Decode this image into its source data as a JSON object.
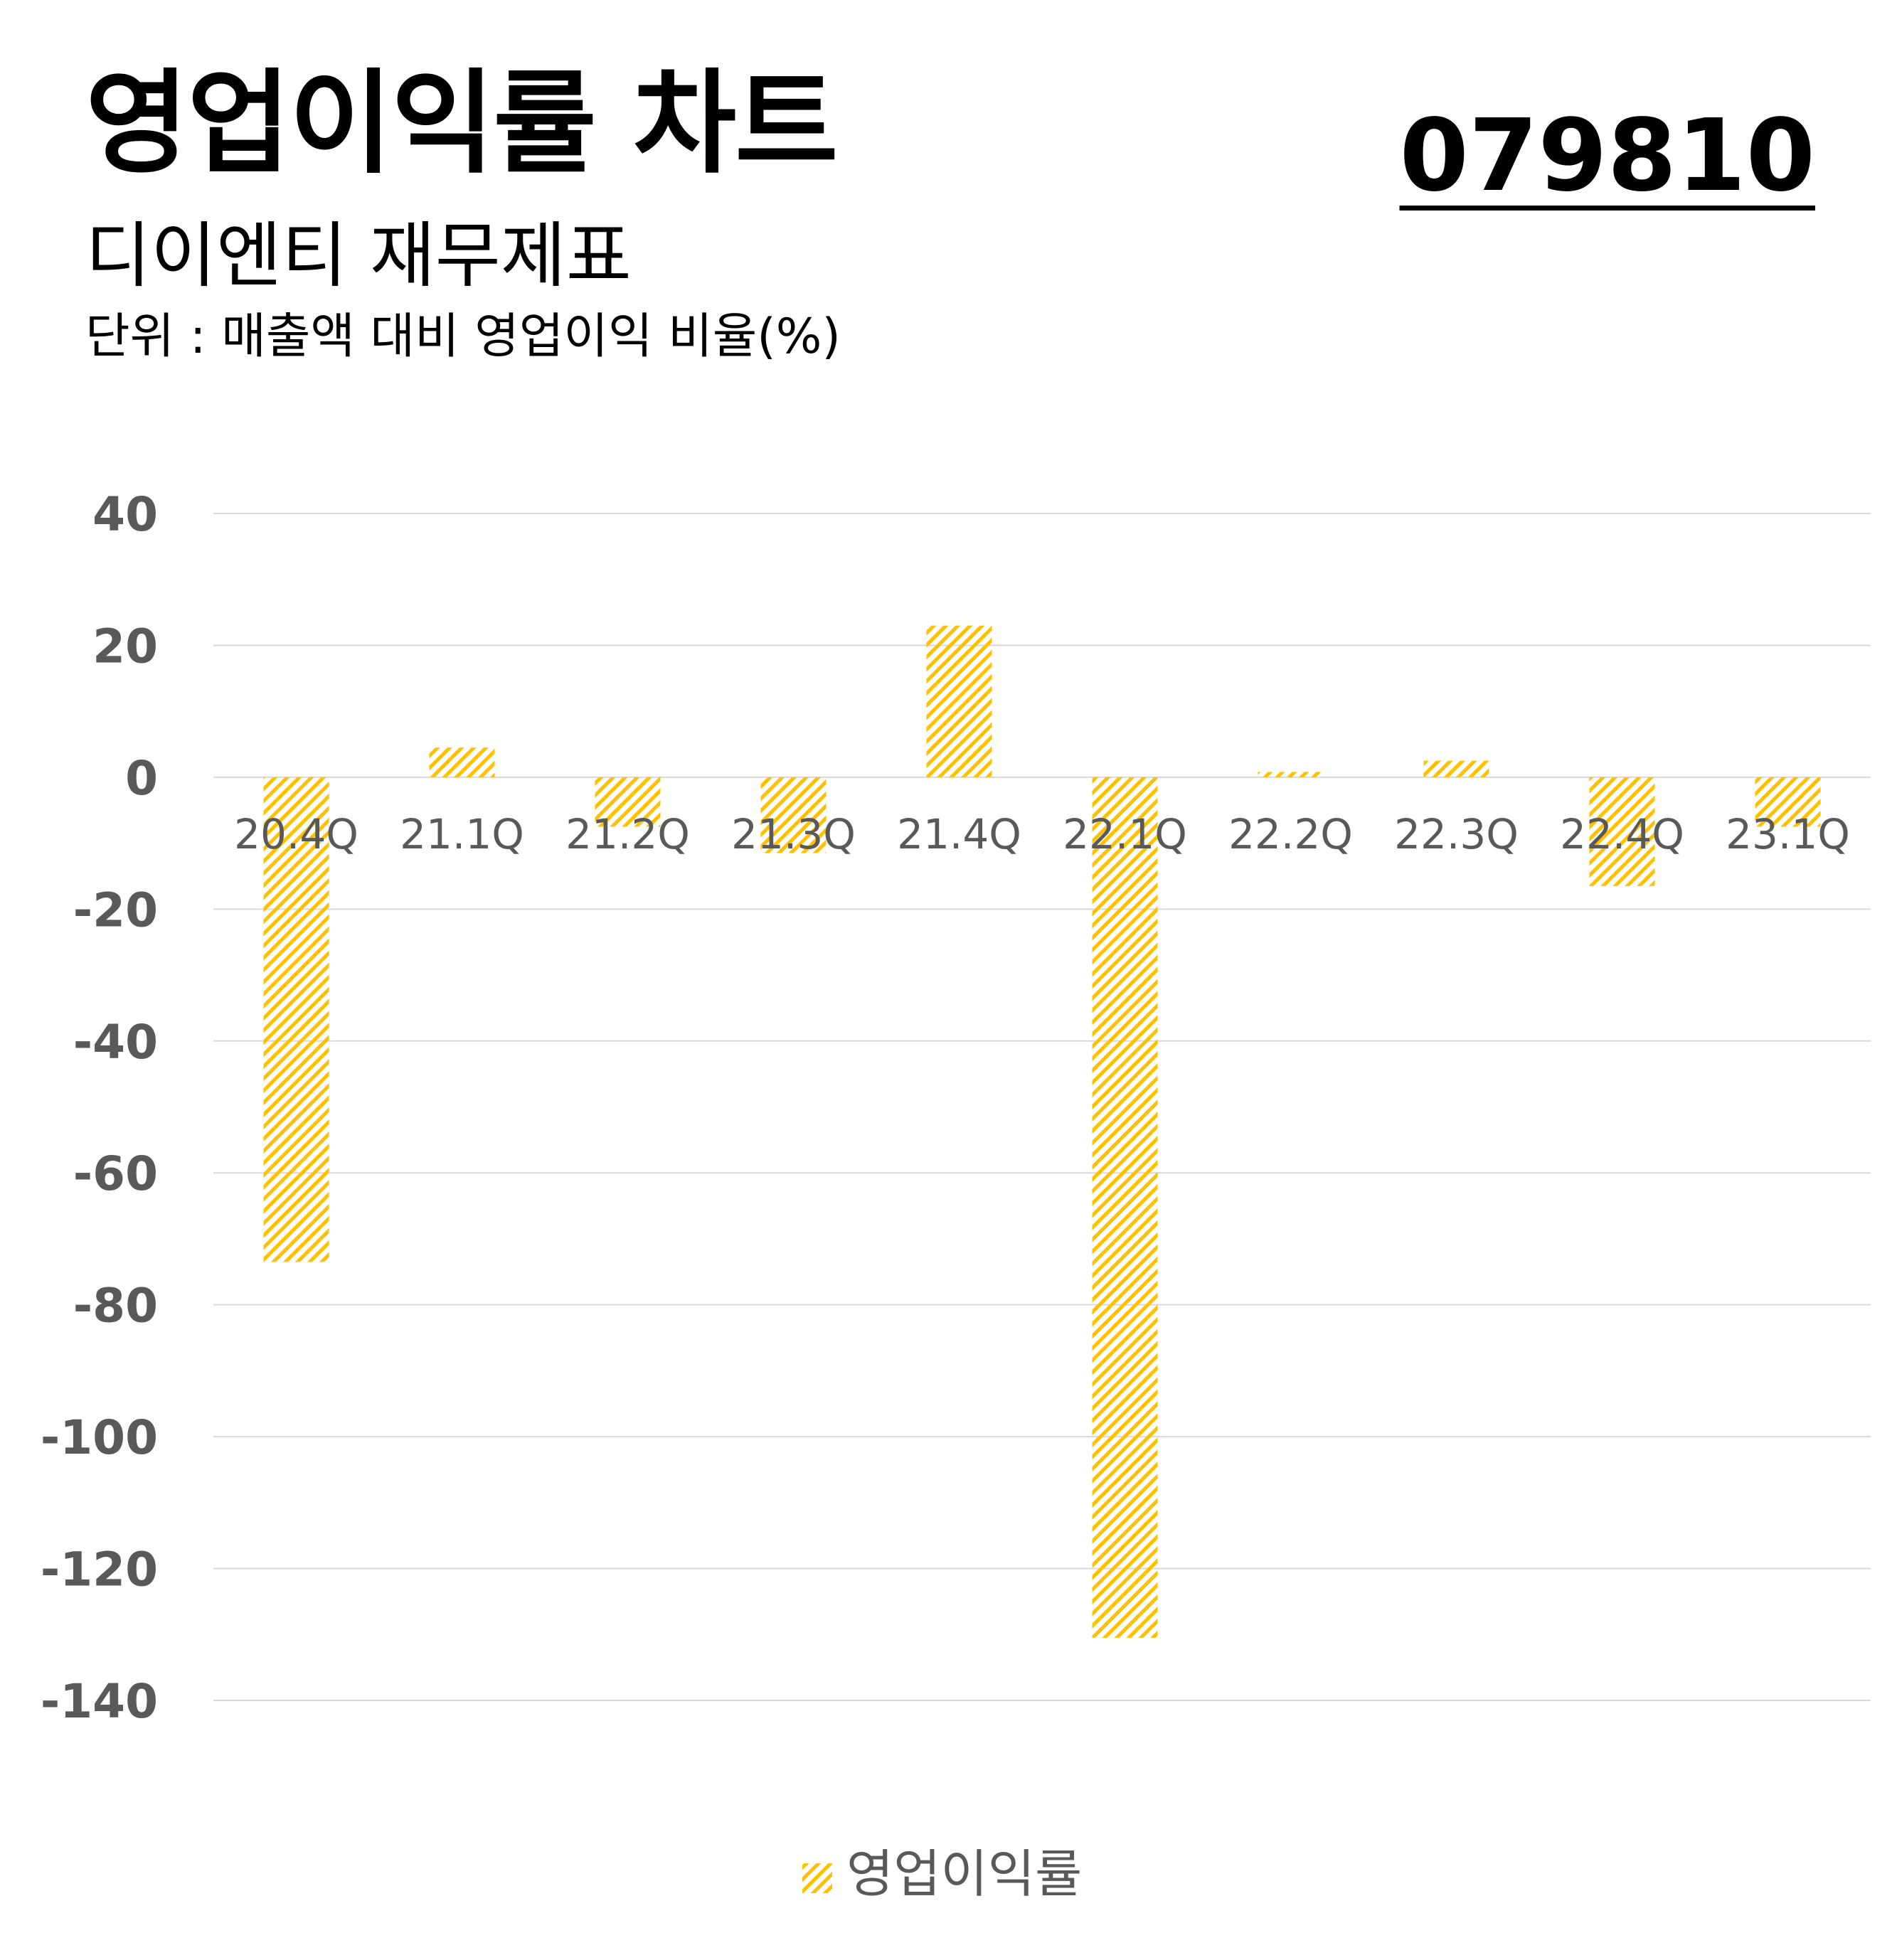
{
  "header": {
    "title": "영업이익률 차트",
    "stock_code": "079810",
    "subtitle": "디이엔티 재무제표",
    "unit": "단위 : 매출액 대비 영업이익 비율(%)"
  },
  "colors": {
    "bar": "#FFC000",
    "grid": "#D9D9D9",
    "tick_text": "#595959"
  },
  "chart_data": {
    "type": "bar",
    "categories": [
      "20.4Q",
      "21.1Q",
      "21.2Q",
      "21.3Q",
      "21.4Q",
      "22.1Q",
      "22.2Q",
      "22.3Q",
      "22.4Q",
      "23.1Q"
    ],
    "series": [
      {
        "name": "영업이익률",
        "values": [
          -73.5,
          4.5,
          -7.5,
          -11.5,
          23.0,
          -130.5,
          0.8,
          2.5,
          -16.5,
          -7.5
        ]
      }
    ],
    "yticks": [
      "40",
      "20",
      "0",
      "-20",
      "-40",
      "-60",
      "-80",
      "-100",
      "-120",
      "-140"
    ],
    "ylim": [
      -140,
      40
    ],
    "grid": true,
    "legend_position": "bottom",
    "bar_pattern": "diagonal-hatch"
  }
}
